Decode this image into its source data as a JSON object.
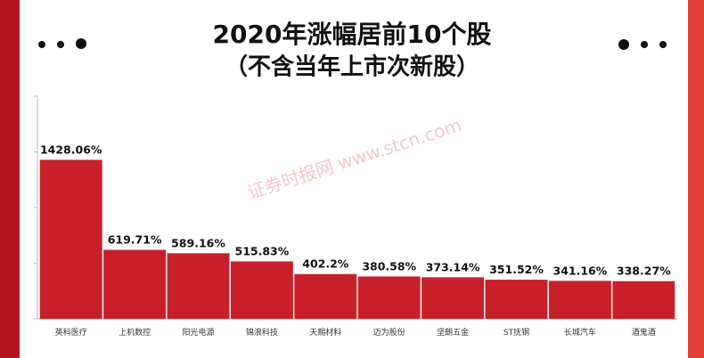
{
  "chart_data": {
    "type": "bar",
    "title": "2020年涨幅居前10个股",
    "subtitle": "（不含当年上市次新股）",
    "watermark": "证券时报网 www.stcn.com",
    "categories": [
      "英科医疗",
      "上机数控",
      "阳光电源",
      "锦浪科技",
      "天赐材料",
      "迈为股份",
      "坚朗五金",
      "ST抚钢",
      "长城汽车",
      "酒鬼酒"
    ],
    "values": [
      1428.06,
      619.71,
      589.16,
      515.83,
      402.2,
      380.58,
      373.14,
      351.52,
      341.16,
      338.27
    ],
    "value_labels": [
      "1428.06%",
      "619.71%",
      "589.16%",
      "515.83%",
      "402.2%",
      "380.58%",
      "373.14%",
      "351.52%",
      "341.16%",
      "338.27%"
    ],
    "color": "#c8202a",
    "ylim": [
      0,
      2000
    ],
    "yticks": [
      0,
      500,
      1000,
      1500,
      2000
    ]
  }
}
